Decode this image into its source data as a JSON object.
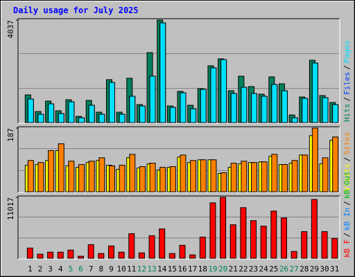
{
  "title": "Daily usage for July 2025",
  "separator": "/",
  "chart_data": [
    {
      "type": "bar",
      "ylim": [
        0,
        4037
      ],
      "yticks": [
        4037
      ],
      "grid": true,
      "series": [
        {
          "name": "Hits",
          "color": "#00805c",
          "values": [
            1091,
            436,
            846,
            464,
            900,
            245,
            873,
            409,
            1691,
            409,
            1746,
            709,
            2755,
            4037,
            655,
            1228,
            682,
            1337,
            2237,
            2510,
            1255,
            1828,
            1419,
            1118,
            1800,
            1528,
            300,
            1009,
            2455,
            1064,
            791
          ]
        },
        {
          "name": "Files",
          "color": "#0040ff",
          "values": [
            928,
            327,
            737,
            355,
            818,
            191,
            682,
            327,
            1582,
            327,
            1037,
            655,
            1828,
            3928,
            600,
            1173,
            546,
            1309,
            2155,
            2482,
            1146,
            1391,
            1146,
            1037,
            1500,
            1255,
            191,
            955,
            2346,
            982,
            709
          ]
        },
        {
          "name": "Pages",
          "color": "#00e0ff",
          "values": [
            928,
            327,
            737,
            355,
            818,
            191,
            682,
            327,
            1582,
            327,
            1037,
            655,
            1828,
            3928,
            600,
            1173,
            546,
            1309,
            2155,
            2482,
            1146,
            1391,
            1146,
            1037,
            1500,
            1255,
            191,
            955,
            2346,
            982,
            709
          ]
        }
      ]
    },
    {
      "type": "bar",
      "ylim": [
        0,
        187
      ],
      "yticks": [
        187
      ],
      "grid": true,
      "series": [
        {
          "name": "Visits",
          "color": "#ffff00",
          "values": [
            78,
            80,
            92,
            121,
            76,
            72,
            86,
            92,
            78,
            66,
            100,
            70,
            82,
            64,
            72,
            102,
            86,
            94,
            94,
            54,
            72,
            82,
            86,
            88,
            104,
            80,
            84,
            108,
            165,
            82,
            151
          ]
        },
        {
          "name": "Sites",
          "color": "#ff8000",
          "values": [
            92,
            86,
            121,
            141,
            90,
            80,
            90,
            100,
            76,
            78,
            110,
            74,
            84,
            72,
            74,
            108,
            92,
            94,
            94,
            56,
            84,
            90,
            86,
            88,
            110,
            80,
            92,
            108,
            187,
            100,
            161
          ]
        }
      ]
    },
    {
      "type": "bar",
      "ylim": [
        0,
        11017
      ],
      "yticks": [
        11017
      ],
      "grid": true,
      "categories": [
        1,
        2,
        3,
        4,
        5,
        6,
        7,
        8,
        9,
        10,
        11,
        12,
        13,
        14,
        15,
        16,
        17,
        18,
        19,
        20,
        21,
        22,
        23,
        24,
        25,
        26,
        27,
        28,
        29,
        30,
        31
      ],
      "category_colors": [
        "#000000",
        "#000000",
        "#000000",
        "#000000",
        "#00805c",
        "#00805c",
        "#000000",
        "#000000",
        "#000000",
        "#000000",
        "#000000",
        "#00805c",
        "#00805c",
        "#000000",
        "#000000",
        "#000000",
        "#000000",
        "#000000",
        "#00805c",
        "#00805c",
        "#000000",
        "#000000",
        "#000000",
        "#000000",
        "#000000",
        "#00805c",
        "#00805c",
        "#000000",
        "#000000",
        "#000000",
        "#000000"
      ],
      "series": [
        {
          "name": "kB F",
          "color": "#ff0000",
          "values": [
            1857,
            743,
            1114,
            1114,
            1486,
            371,
            2476,
            867,
            2228,
            1114,
            4457,
            990,
            4085,
            5323,
            867,
            2352,
            619,
            3838,
            10027,
            11017,
            6066,
            9160,
            6809,
            5818,
            8542,
            7304,
            1238,
            4828,
            10646,
            4828,
            3590
          ]
        }
      ],
      "extra_legend": [
        {
          "name": "kB In",
          "color": "#0080ff"
        },
        {
          "name": "kB Out",
          "color": "#00c000"
        }
      ]
    }
  ]
}
